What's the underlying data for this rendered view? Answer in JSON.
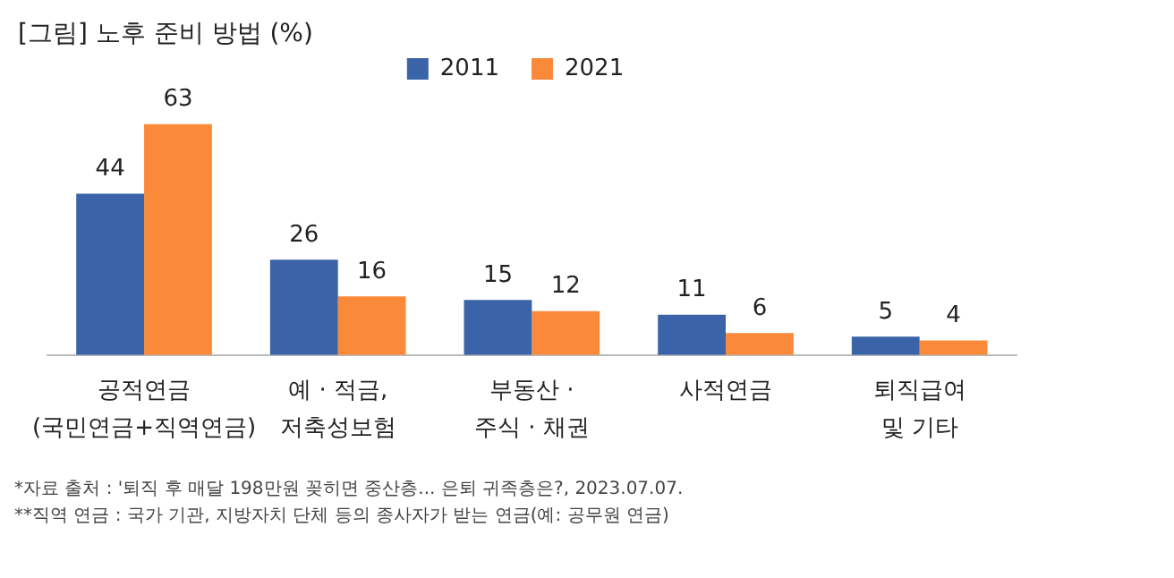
{
  "chart_data": {
    "type": "bar",
    "title": "[그림] 노후 준비 방법 (%)",
    "categories": [
      "공적연금\n(국민연금+직역연금)",
      "예 · 적금,\n저축성보험",
      "부동산 ·\n주식 · 채권",
      "사적연금",
      "퇴직급여\n및 기타"
    ],
    "series": [
      {
        "name": "2011",
        "color": "#3a63a8",
        "values": [
          44,
          26,
          15,
          11,
          5
        ]
      },
      {
        "name": "2021",
        "color": "#fa8a3a",
        "values": [
          63,
          16,
          12,
          6,
          4
        ]
      }
    ],
    "data_labels": true,
    "grid": false,
    "legend": "top",
    "annotations": [
      "*자료 출처 : '퇴직 후 매달 198만원 꽂히면 중산층... 은퇴 귀족층은?, 2023.07.07.",
      "**직역 연금 : 국가 기관, 지방자치 단체 등의 종사자가 받는 연금(예: 공무원 연금)"
    ]
  }
}
